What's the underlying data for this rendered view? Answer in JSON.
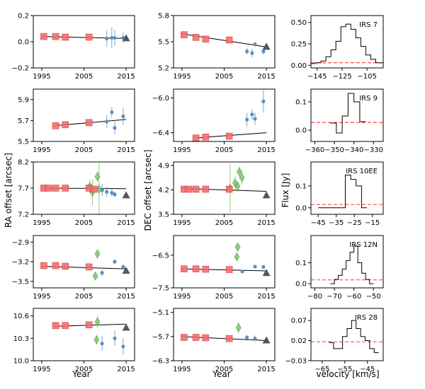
{
  "figure": {
    "row_names": [
      "IRS 7",
      "IRS 9",
      "IRS 10EE",
      "IRS 12N",
      "IRS 28"
    ],
    "labels": {
      "ra_ylabel": "RA offset [arcsec]",
      "dec_ylabel": "DEC offset [arcsec]",
      "flux_ylabel": "Flux [Jy]",
      "year_xlabel": "Year",
      "velocity_xlabel": "velocity [km/s]"
    },
    "colors": {
      "red_square": "#f07070",
      "red_edge": "#e03030",
      "blue_point": "#5b8fc0",
      "green_diamond": "#7cc26a",
      "green_edge": "#3e8f3e",
      "triangle": "#555555",
      "fit_line": "#000000",
      "dashed": "#ff3333",
      "hist": "#000000"
    },
    "year_ticks": [
      1995,
      2005,
      2015
    ]
  },
  "chart_data": [
    {
      "type": "scatter",
      "panel": "ra",
      "object": "IRS 7",
      "xlim": [
        1993,
        2017
      ],
      "ylim": [
        -0.2,
        0.2
      ],
      "yticks": [
        "-0.2",
        "0.0",
        "0.2"
      ],
      "red_squares": [
        [
          1995.5,
          0.04
        ],
        [
          1998.3,
          0.04
        ],
        [
          2000.6,
          0.035
        ],
        [
          2006.2,
          0.035
        ]
      ],
      "blue_points": [
        [
          2010.4,
          0.025,
          0.06
        ],
        [
          2011.6,
          0.03,
          0.08
        ],
        [
          2012.3,
          0.03,
          0.06
        ],
        [
          2014.3,
          0.03,
          0.04
        ]
      ],
      "green_diamonds": [],
      "triangle": [
        2015.0,
        0.025
      ],
      "fit": [
        [
          1995.0,
          0.04
        ],
        [
          2015.0,
          0.025
        ]
      ]
    },
    {
      "type": "scatter",
      "panel": "dec",
      "object": "IRS 7",
      "xlim": [
        1993,
        2017
      ],
      "ylim": [
        5.2,
        5.8
      ],
      "yticks": [
        "5.2",
        "5.5",
        "5.8"
      ],
      "red_squares": [
        [
          1995.5,
          5.58
        ],
        [
          1998.3,
          5.55
        ],
        [
          2000.6,
          5.53
        ],
        [
          2006.2,
          5.52
        ]
      ],
      "blue_points": [
        [
          2010.4,
          5.39,
          0.04
        ],
        [
          2011.6,
          5.37,
          0.05
        ],
        [
          2012.3,
          5.47,
          0.03
        ],
        [
          2014.3,
          5.39,
          0.04
        ]
      ],
      "green_diamonds": [],
      "triangle": [
        2015.0,
        5.44
      ],
      "fit": [
        [
          1995.0,
          5.59
        ],
        [
          2015.0,
          5.44
        ]
      ]
    },
    {
      "type": "scatter",
      "panel": "ra",
      "object": "IRS 9",
      "xlim": [
        1993,
        2017
      ],
      "ylim": [
        5.5,
        6.0
      ],
      "yticks": [
        "5.5",
        "5.7",
        "5.9"
      ],
      "red_squares": [
        [
          1998.3,
          5.65
        ],
        [
          2000.6,
          5.66
        ],
        [
          2006.2,
          5.68
        ]
      ],
      "blue_points": [
        [
          2010.4,
          5.69,
          0.06
        ],
        [
          2011.6,
          5.78,
          0.05
        ],
        [
          2012.3,
          5.63,
          0.06
        ],
        [
          2014.3,
          5.74,
          0.08
        ]
      ],
      "green_diamonds": [],
      "triangle": null,
      "fit": [
        [
          1998.0,
          5.65
        ],
        [
          2015.0,
          5.71
        ]
      ]
    },
    {
      "type": "scatter",
      "panel": "dec",
      "object": "IRS 9",
      "xlim": [
        1993,
        2017
      ],
      "ylim": [
        -6.5,
        -5.9
      ],
      "yticks": [
        "-6.0",
        "-6.4"
      ],
      "red_squares": [
        [
          1998.3,
          -6.46
        ],
        [
          2000.6,
          -6.45
        ],
        [
          2006.2,
          -6.44
        ]
      ],
      "blue_points": [
        [
          2010.4,
          -6.25,
          0.08
        ],
        [
          2011.6,
          -6.19,
          0.06
        ],
        [
          2012.3,
          -6.24,
          0.07
        ],
        [
          2014.3,
          -6.04,
          0.13
        ]
      ],
      "green_diamonds": [],
      "triangle": null,
      "fit": [
        [
          1998.0,
          -6.46
        ],
        [
          2015.0,
          -6.4
        ]
      ]
    },
    {
      "type": "scatter",
      "panel": "ra",
      "object": "IRS 10EE",
      "xlim": [
        1993,
        2017
      ],
      "ylim": [
        7.2,
        8.2
      ],
      "yticks": [
        "7.2",
        "7.7",
        "8.2"
      ],
      "red_squares": [
        [
          1995.5,
          7.7
        ],
        [
          1996.6,
          7.7
        ],
        [
          1998.3,
          7.7
        ],
        [
          2000.6,
          7.7
        ],
        [
          2006.2,
          7.7
        ],
        [
          2007.4,
          7.68
        ]
      ],
      "blue_points": [
        [
          2009.3,
          7.66,
          0.12
        ],
        [
          2010.4,
          7.63,
          0.1
        ],
        [
          2011.6,
          7.61,
          0.07
        ],
        [
          2012.3,
          7.58,
          0.05
        ]
      ],
      "green_diamonds": [
        [
          2006.4,
          7.73,
          0.12
        ],
        [
          2007.0,
          7.62,
          0.25
        ],
        [
          2008.2,
          7.92,
          0.1
        ],
        [
          2008.6,
          7.68,
          0.5
        ]
      ],
      "triangle": [
        2015.0,
        7.56
      ],
      "fit": [
        [
          1995.0,
          7.7
        ],
        [
          2015.0,
          7.69
        ]
      ]
    },
    {
      "type": "scatter",
      "panel": "dec",
      "object": "IRS 10EE",
      "xlim": [
        1993,
        2017
      ],
      "ylim": [
        3.5,
        5.0
      ],
      "yticks": [
        "3.5",
        "4.2",
        "4.9"
      ],
      "red_squares": [
        [
          1995.5,
          4.22
        ],
        [
          1996.6,
          4.22
        ],
        [
          1998.3,
          4.22
        ],
        [
          2000.6,
          4.22
        ],
        [
          2006.2,
          4.22
        ]
      ],
      "blue_points": [],
      "green_diamonds": [
        [
          2006.4,
          4.25,
          0.7
        ],
        [
          2007.6,
          4.4,
          0.2
        ],
        [
          2008.2,
          4.3,
          0.15
        ],
        [
          2008.6,
          4.72,
          0.15
        ],
        [
          2009.2,
          4.55,
          0.2
        ]
      ],
      "triangle": [
        2015.0,
        4.04
      ],
      "fit": [
        [
          1995.0,
          4.24
        ],
        [
          2015.0,
          4.16
        ]
      ]
    },
    {
      "type": "scatter",
      "panel": "ra",
      "object": "IRS 12N",
      "xlim": [
        1993,
        2017
      ],
      "ylim": [
        -3.6,
        -2.8
      ],
      "yticks": [
        "-2.9",
        "-3.2",
        "-3.5"
      ],
      "red_squares": [
        [
          1995.5,
          -3.26
        ],
        [
          1998.3,
          -3.26
        ],
        [
          2000.6,
          -3.27
        ],
        [
          2006.2,
          -3.28
        ]
      ],
      "blue_points": [
        [
          2009.3,
          -3.37,
          0.05
        ],
        [
          2012.3,
          -3.2,
          0.04
        ],
        [
          2014.3,
          -3.28,
          0.04
        ]
      ],
      "green_diamonds": [
        [
          2008.2,
          -3.08,
          0.07
        ],
        [
          2007.7,
          -3.42,
          0.06
        ]
      ],
      "triangle": [
        2015.0,
        -3.34
      ],
      "fit": [
        [
          1995.0,
          -3.27
        ],
        [
          2015.0,
          -3.31
        ]
      ]
    },
    {
      "type": "scatter",
      "panel": "dec",
      "object": "IRS 12N",
      "xlim": [
        1993,
        2017
      ],
      "ylim": [
        -7.5,
        -5.9
      ],
      "yticks": [
        "-6.5",
        "-7.5"
      ],
      "red_squares": [
        [
          1995.5,
          -6.92
        ],
        [
          1998.3,
          -6.92
        ],
        [
          2000.6,
          -6.93
        ],
        [
          2006.2,
          -6.94
        ]
      ],
      "blue_points": [
        [
          2009.3,
          -7.0,
          0.05
        ],
        [
          2012.3,
          -6.85,
          0.05
        ],
        [
          2014.3,
          -6.86,
          0.04
        ]
      ],
      "green_diamonds": [
        [
          2008.2,
          -6.25,
          0.1
        ],
        [
          2008.0,
          -6.55,
          0.05
        ]
      ],
      "triangle": [
        2015.0,
        -7.05
      ],
      "fit": [
        [
          1995.0,
          -6.92
        ],
        [
          2015.0,
          -6.98
        ]
      ]
    },
    {
      "type": "scatter",
      "panel": "ra",
      "object": "IRS 28",
      "xlim": [
        1993,
        2017
      ],
      "ylim": [
        10.0,
        10.7
      ],
      "yticks": [
        "10.0",
        "10.3",
        "10.6"
      ],
      "red_squares": [
        [
          1998.3,
          10.47
        ],
        [
          2000.6,
          10.47
        ],
        [
          2006.2,
          10.48
        ]
      ],
      "blue_points": [
        [
          2009.3,
          10.23,
          0.1
        ],
        [
          2012.3,
          10.3,
          0.1
        ],
        [
          2014.3,
          10.19,
          0.11
        ]
      ],
      "green_diamonds": [
        [
          2008.2,
          10.52,
          0.08
        ],
        [
          2008.0,
          10.28,
          0.06
        ]
      ],
      "triangle": [
        2015.0,
        10.44
      ],
      "fit": [
        [
          1998.0,
          10.46
        ],
        [
          2015.0,
          10.49
        ]
      ]
    },
    {
      "type": "scatter",
      "panel": "dec",
      "object": "IRS 28",
      "xlim": [
        1993,
        2017
      ],
      "ylim": [
        -6.3,
        -5.0
      ],
      "yticks": [
        "-5.1",
        "-5.7",
        "-6.3"
      ],
      "red_squares": [
        [
          1995.5,
          -5.72
        ],
        [
          1998.3,
          -5.72
        ],
        [
          2000.6,
          -5.73
        ],
        [
          2006.2,
          -5.75
        ]
      ],
      "blue_points": [
        [
          2010.4,
          -5.72,
          0.05
        ],
        [
          2012.3,
          -5.75,
          0.08
        ]
      ],
      "green_diamonds": [
        [
          2008.4,
          -5.48,
          0.14
        ]
      ],
      "triangle": [
        2015.0,
        -5.8
      ],
      "fit": [
        [
          1995.0,
          -5.7
        ],
        [
          2015.0,
          -5.8
        ]
      ]
    },
    {
      "type": "histogram",
      "panel": "spectrum",
      "object": "IRS 7",
      "xlim": [
        -150,
        -92
      ],
      "ylim": [
        -0.03,
        0.58
      ],
      "xticks": [
        -145,
        -125,
        -105
      ],
      "yticks": [
        0.0,
        0.25,
        0.5
      ],
      "ytick_labels": [
        "0.00",
        "0.25",
        "0.50"
      ],
      "bin_edges": [
        -150,
        -146,
        -142,
        -138,
        -134,
        -130,
        -126,
        -122,
        -118,
        -114,
        -110,
        -106,
        -102,
        -98,
        -94,
        -92
      ],
      "values": [
        0.02,
        0.03,
        0.05,
        0.1,
        0.18,
        0.28,
        0.45,
        0.48,
        0.42,
        0.32,
        0.22,
        0.12,
        0.07,
        0.03,
        0.03
      ],
      "dashed_level": 0.03
    },
    {
      "type": "histogram",
      "panel": "spectrum",
      "object": "IRS 9",
      "xlim": [
        -362,
        -325
      ],
      "ylim": [
        -0.04,
        0.145
      ],
      "xticks": [
        -360,
        -350,
        -340,
        -330
      ],
      "yticks": [
        0.0,
        0.1
      ],
      "ytick_labels": [
        "0.0",
        "0.1"
      ],
      "bin_edges": [
        -352,
        -349,
        -346,
        -343,
        -340,
        -337,
        -334
      ],
      "values": [
        0.025,
        -0.01,
        0.05,
        0.13,
        0.1,
        0.03
      ],
      "dashed_level": 0.027
    },
    {
      "type": "histogram",
      "panel": "spectrum",
      "object": "IRS 10EE",
      "xlim": [
        -49,
        -9
      ],
      "ylim": [
        -0.03,
        0.21
      ],
      "xticks": [
        -45,
        -35,
        -25,
        -15
      ],
      "yticks": [
        0.0,
        0.1
      ],
      "ytick_labels": [
        "0.0",
        "0.1"
      ],
      "bin_edges": [
        -45,
        -42,
        -39,
        -36,
        -33,
        -30,
        -27,
        -24,
        -21,
        -18
      ],
      "values": [
        0.0,
        0.0,
        0.0,
        0.0,
        0.0,
        0.15,
        0.13,
        0.1,
        0.0
      ],
      "dashed_level": 0.015
    },
    {
      "type": "histogram",
      "panel": "spectrum",
      "object": "IRS 12N",
      "xlim": [
        -82,
        -45
      ],
      "ylim": [
        -0.02,
        0.23
      ],
      "xticks": [
        -80,
        -70,
        -60,
        -50
      ],
      "yticks": [
        0.0,
        0.1
      ],
      "ytick_labels": [
        "0.0",
        "0.1"
      ],
      "bin_edges": [
        -72,
        -70,
        -68,
        -66,
        -64,
        -62,
        -60,
        -58,
        -56,
        -54,
        -52,
        -50
      ],
      "values": [
        0.0,
        0.02,
        0.04,
        0.07,
        0.11,
        0.15,
        0.18,
        0.1,
        0.05,
        0.02,
        0.0
      ],
      "dashed_level": 0.018
    },
    {
      "type": "histogram",
      "panel": "spectrum",
      "object": "IRS 28",
      "xlim": [
        -70,
        -38
      ],
      "ylim": [
        -0.03,
        0.1
      ],
      "xticks": [
        -65,
        -55,
        -45
      ],
      "yticks": [
        -0.03,
        0.02,
        0.07
      ],
      "ytick_labels": [
        "-0.03",
        "0.02",
        "0.07"
      ],
      "bin_edges": [
        -62,
        -60,
        -58,
        -56,
        -54,
        -52,
        -50,
        -48,
        -46,
        -44,
        -42,
        -40
      ],
      "values": [
        0.015,
        0.0,
        0.0,
        0.03,
        0.05,
        0.07,
        0.05,
        0.03,
        0.02,
        0.0,
        -0.01
      ],
      "dashed_level": 0.017
    }
  ]
}
